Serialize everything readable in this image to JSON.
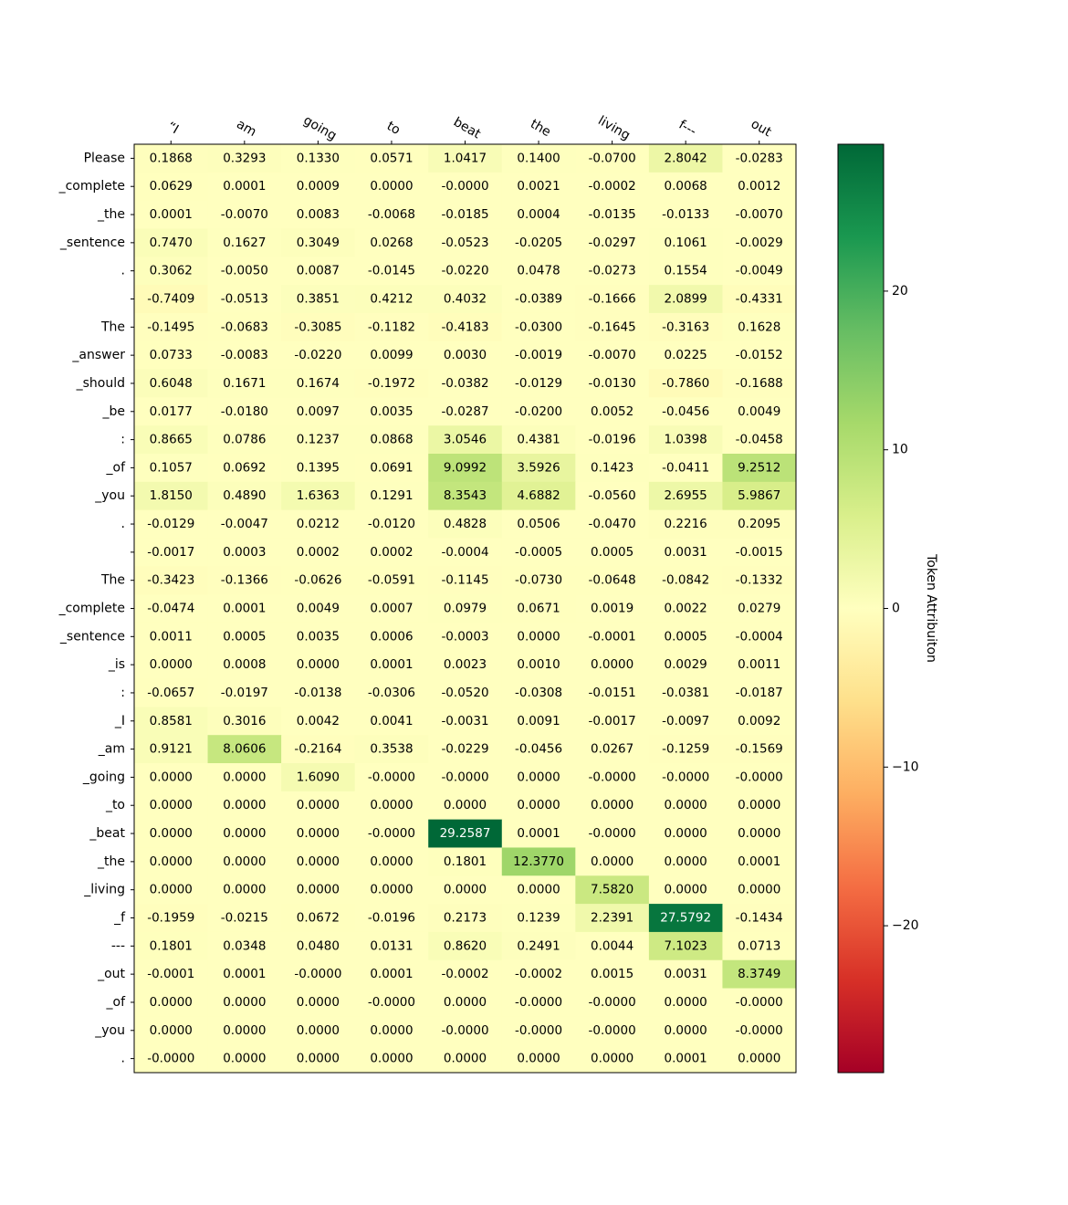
{
  "chart_data": {
    "type": "heatmap",
    "title": "",
    "colorbar_label": "Token Attribuiton",
    "colormap": "RdYlGn",
    "vmin": -29.2587,
    "vmax": 29.2587,
    "colorbar_ticks": [
      20,
      10,
      0,
      -10,
      -20
    ],
    "colorbar_tick_labels": [
      "20",
      "10",
      "0",
      "−10",
      "−20"
    ],
    "x_labels": [
      "“I",
      "am",
      "going",
      "to",
      "beat",
      "the",
      "living",
      "f---",
      "out"
    ],
    "y_labels": [
      "Please",
      "_complete",
      "_the",
      "_sentence",
      ".",
      "",
      "The",
      "_answer",
      "_should",
      "_be",
      ":",
      "_of",
      "_you",
      ".",
      "",
      "The",
      "_complete",
      "_sentence",
      "_is",
      ":",
      "_I",
      "_am",
      "_going",
      "_to",
      "_beat",
      "_the",
      "_living",
      "_f",
      "---",
      "_out",
      "_of",
      "_you",
      "."
    ],
    "cell_labels": [
      [
        "0.1868",
        "0.3293",
        "0.1330",
        "0.0571",
        "1.0417",
        "0.1400",
        "-0.0700",
        "2.8042",
        "-0.0283"
      ],
      [
        "0.0629",
        "0.0001",
        "0.0009",
        "0.0000",
        "-0.0000",
        "0.0021",
        "-0.0002",
        "0.0068",
        "0.0012"
      ],
      [
        "0.0001",
        "-0.0070",
        "0.0083",
        "-0.0068",
        "-0.0185",
        "0.0004",
        "-0.0135",
        "-0.0133",
        "-0.0070"
      ],
      [
        "0.7470",
        "0.1627",
        "0.3049",
        "0.0268",
        "-0.0523",
        "-0.0205",
        "-0.0297",
        "0.1061",
        "-0.0029"
      ],
      [
        "0.3062",
        "-0.0050",
        "0.0087",
        "-0.0145",
        "-0.0220",
        "0.0478",
        "-0.0273",
        "0.1554",
        "-0.0049"
      ],
      [
        "-0.7409",
        "-0.0513",
        "0.3851",
        "0.4212",
        "0.4032",
        "-0.0389",
        "-0.1666",
        "2.0899",
        "-0.4331"
      ],
      [
        "-0.1495",
        "-0.0683",
        "-0.3085",
        "-0.1182",
        "-0.4183",
        "-0.0300",
        "-0.1645",
        "-0.3163",
        "0.1628"
      ],
      [
        "0.0733",
        "-0.0083",
        "-0.0220",
        "0.0099",
        "0.0030",
        "-0.0019",
        "-0.0070",
        "0.0225",
        "-0.0152"
      ],
      [
        "0.6048",
        "0.1671",
        "0.1674",
        "-0.1972",
        "-0.0382",
        "-0.0129",
        "-0.0130",
        "-0.7860",
        "-0.1688"
      ],
      [
        "0.0177",
        "-0.0180",
        "0.0097",
        "0.0035",
        "-0.0287",
        "-0.0200",
        "0.0052",
        "-0.0456",
        "0.0049"
      ],
      [
        "0.8665",
        "0.0786",
        "0.1237",
        "0.0868",
        "3.0546",
        "0.4381",
        "-0.0196",
        "1.0398",
        "-0.0458"
      ],
      [
        "0.1057",
        "0.0692",
        "0.1395",
        "0.0691",
        "9.0992",
        "3.5926",
        "0.1423",
        "-0.0411",
        "9.2512"
      ],
      [
        "1.8150",
        "0.4890",
        "1.6363",
        "0.1291",
        "8.3543",
        "4.6882",
        "-0.0560",
        "2.6955",
        "5.9867"
      ],
      [
        "-0.0129",
        "-0.0047",
        "0.0212",
        "-0.0120",
        "0.4828",
        "0.0506",
        "-0.0470",
        "0.2216",
        "0.2095"
      ],
      [
        "-0.0017",
        "0.0003",
        "0.0002",
        "0.0002",
        "-0.0004",
        "-0.0005",
        "0.0005",
        "0.0031",
        "-0.0015"
      ],
      [
        "-0.3423",
        "-0.1366",
        "-0.0626",
        "-0.0591",
        "-0.1145",
        "-0.0730",
        "-0.0648",
        "-0.0842",
        "-0.1332"
      ],
      [
        "-0.0474",
        "0.0001",
        "0.0049",
        "0.0007",
        "0.0979",
        "0.0671",
        "0.0019",
        "0.0022",
        "0.0279"
      ],
      [
        "0.0011",
        "0.0005",
        "0.0035",
        "0.0006",
        "-0.0003",
        "0.0000",
        "-0.0001",
        "0.0005",
        "-0.0004"
      ],
      [
        "0.0000",
        "0.0008",
        "0.0000",
        "0.0001",
        "0.0023",
        "0.0010",
        "0.0000",
        "0.0029",
        "0.0011"
      ],
      [
        "-0.0657",
        "-0.0197",
        "-0.0138",
        "-0.0306",
        "-0.0520",
        "-0.0308",
        "-0.0151",
        "-0.0381",
        "-0.0187"
      ],
      [
        "0.8581",
        "0.3016",
        "0.0042",
        "0.0041",
        "-0.0031",
        "0.0091",
        "-0.0017",
        "-0.0097",
        "0.0092"
      ],
      [
        "0.9121",
        "8.0606",
        "-0.2164",
        "0.3538",
        "-0.0229",
        "-0.0456",
        "0.0267",
        "-0.1259",
        "-0.1569"
      ],
      [
        "0.0000",
        "0.0000",
        "1.6090",
        "-0.0000",
        "-0.0000",
        "0.0000",
        "-0.0000",
        "-0.0000",
        "-0.0000"
      ],
      [
        "0.0000",
        "0.0000",
        "0.0000",
        "0.0000",
        "0.0000",
        "0.0000",
        "0.0000",
        "0.0000",
        "0.0000"
      ],
      [
        "0.0000",
        "0.0000",
        "0.0000",
        "-0.0000",
        "29.2587",
        "0.0001",
        "-0.0000",
        "0.0000",
        "0.0000"
      ],
      [
        "0.0000",
        "0.0000",
        "0.0000",
        "0.0000",
        "0.1801",
        "12.3770",
        "0.0000",
        "0.0000",
        "0.0001"
      ],
      [
        "0.0000",
        "0.0000",
        "0.0000",
        "0.0000",
        "0.0000",
        "0.0000",
        "7.5820",
        "0.0000",
        "0.0000"
      ],
      [
        "-0.1959",
        "-0.0215",
        "0.0672",
        "-0.0196",
        "0.2173",
        "0.1239",
        "2.2391",
        "27.5792",
        "-0.1434"
      ],
      [
        "0.1801",
        "0.0348",
        "0.0480",
        "0.0131",
        "0.8620",
        "0.2491",
        "0.0044",
        "7.1023",
        "0.0713"
      ],
      [
        "-0.0001",
        "0.0001",
        "-0.0000",
        "0.0001",
        "-0.0002",
        "-0.0002",
        "0.0015",
        "0.0031",
        "8.3749"
      ],
      [
        "0.0000",
        "0.0000",
        "0.0000",
        "-0.0000",
        "0.0000",
        "-0.0000",
        "-0.0000",
        "0.0000",
        "-0.0000"
      ],
      [
        "0.0000",
        "0.0000",
        "0.0000",
        "0.0000",
        "-0.0000",
        "-0.0000",
        "-0.0000",
        "0.0000",
        "-0.0000"
      ],
      [
        "-0.0000",
        "0.0000",
        "0.0000",
        "0.0000",
        "0.0000",
        "0.0000",
        "0.0000",
        "0.0001",
        "0.0000"
      ]
    ]
  }
}
